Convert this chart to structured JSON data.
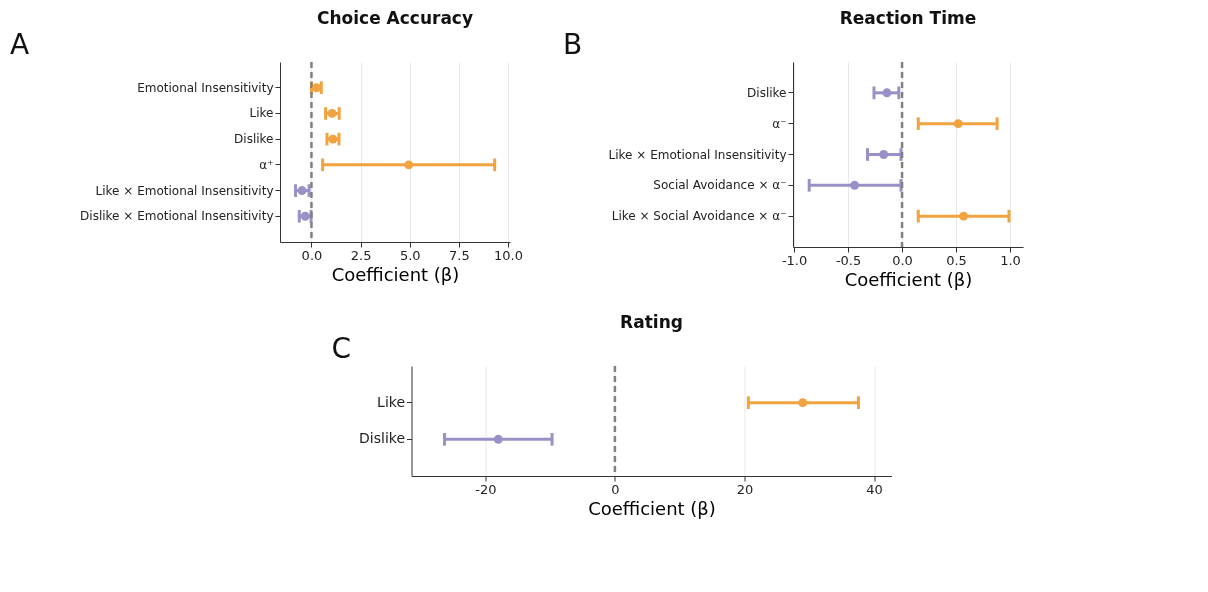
{
  "chart_data": [
    {
      "type": "scatter",
      "orientation": "horizontal",
      "title": "Choice Accuracy",
      "xlabel": "Coefficient (β)",
      "annotations": [
        "A"
      ],
      "categories": [
        "Emotional Insensitivity",
        "Like",
        "Dislike",
        "α⁺",
        "Like × Emotional Insensitivity",
        "Dislike × Emotional Insensitivity"
      ],
      "values": [
        0.26,
        1.05,
        1.09,
        4.95,
        -0.48,
        -0.32
      ],
      "errors": [
        [
          0.0,
          0.5
        ],
        [
          0.72,
          1.41
        ],
        [
          0.79,
          1.4
        ],
        [
          0.57,
          9.32
        ],
        [
          -0.81,
          -0.12
        ],
        [
          -0.62,
          -0.02
        ]
      ],
      "colors": [
        "#f2a23f",
        "#f2a23f",
        "#f2a23f",
        "#f2a23f",
        "#9a90c8",
        "#9a90c8"
      ],
      "xlim": [
        -1.6,
        10.1
      ],
      "xticks": [
        {
          "value": 0,
          "label": "0.0"
        },
        2.5,
        {
          "value": 5,
          "label": "5.0"
        },
        7.5,
        {
          "value": 10,
          "label": "10.0"
        }
      ],
      "ref_lines": [
        {
          "axis": "x",
          "value": 0,
          "label": null,
          "color": "#808080",
          "line_style": "dashed"
        }
      ],
      "grid": "x",
      "marker": "circle"
    },
    {
      "type": "scatter",
      "orientation": "horizontal",
      "title": "Reaction Time",
      "xlabel": "Coefficient (β)",
      "annotations": [
        "B"
      ],
      "categories": [
        "Dislike",
        "α⁻",
        "Like × Emotional Insensitivity",
        "Social Avoidance × α⁻",
        "Like × Social Avoidance × α⁻"
      ],
      "values": [
        -0.14,
        0.52,
        -0.17,
        -0.44,
        0.57
      ],
      "errors": [
        [
          -0.26,
          -0.03
        ],
        [
          0.15,
          0.88
        ],
        [
          -0.32,
          -0.01
        ],
        [
          -0.86,
          -0.01
        ],
        [
          0.15,
          0.99
        ]
      ],
      "colors": [
        "#9a90c8",
        "#f2a23f",
        "#9a90c8",
        "#9a90c8",
        "#f2a23f"
      ],
      "xlim": [
        -1.01,
        1.12
      ],
      "xticks": [
        {
          "value": -1,
          "label": "-1.0"
        },
        -0.5,
        {
          "value": 0,
          "label": "0.0"
        },
        0.5,
        {
          "value": 1,
          "label": "1.0"
        }
      ],
      "ref_lines": [
        {
          "axis": "x",
          "value": 0,
          "label": null,
          "color": "#808080",
          "line_style": "dashed"
        }
      ],
      "grid": "x",
      "marker": "circle"
    },
    {
      "type": "scatter",
      "orientation": "horizontal",
      "title": "Rating",
      "xlabel": "Coefficient (β)",
      "annotations": [
        "C"
      ],
      "categories": [
        "Like",
        "Dislike"
      ],
      "values": [
        29.0,
        -18.0
      ],
      "errors": [
        [
          20.6,
          37.6
        ],
        [
          -26.3,
          -9.7
        ]
      ],
      "colors": [
        "#f2a23f",
        "#9a90c8"
      ],
      "xlim": [
        -31.4,
        42.7
      ],
      "xticks": [
        -20,
        0,
        20,
        40
      ],
      "ref_lines": [
        {
          "axis": "x",
          "value": 0,
          "label": null,
          "color": "#808080",
          "line_style": "dashed"
        }
      ],
      "grid": "x",
      "marker": "circle"
    }
  ]
}
